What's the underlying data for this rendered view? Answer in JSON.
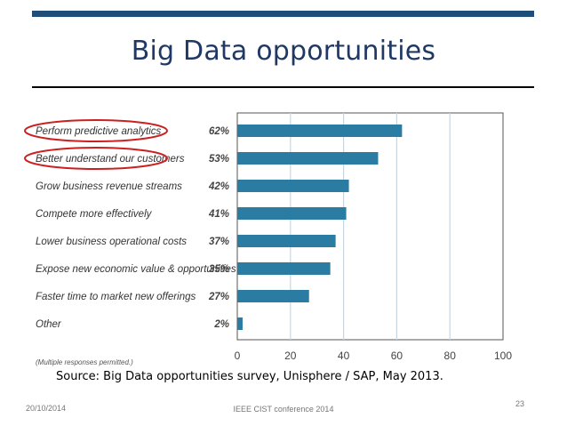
{
  "slide": {
    "title": "Big Data opportunities",
    "source": "Source: Big Data opportunities survey, Unisphere / SAP, May 2013.",
    "footer_date": "20/10/2014",
    "footer_conference": "IEEE CIST conference 2014",
    "page_number": "23",
    "accent_color": "#1f4e79"
  },
  "chart_data": {
    "type": "bar",
    "orientation": "horizontal",
    "categories": [
      "Perform predictive analytics",
      "Better understand our customers",
      "Grow business revenue streams",
      "Compete more effectively",
      "Lower business operational costs",
      "Expose new economic value & opportunities",
      "Faster time to market new offerings",
      "Other"
    ],
    "values": [
      62,
      53,
      42,
      41,
      37,
      35,
      27,
      2
    ],
    "value_labels": [
      "62%",
      "53%",
      "42%",
      "41%",
      "37%",
      "35%",
      "27%",
      "2%"
    ],
    "xlim": [
      0,
      100
    ],
    "x_ticks": [
      0,
      20,
      40,
      60,
      80,
      100
    ],
    "grid": true,
    "note": "(Multiple responses permitted.)",
    "highlighted_categories": [
      0,
      1
    ],
    "bar_color": "#2a7ca3",
    "highlight_color": "#cc1f1f"
  }
}
